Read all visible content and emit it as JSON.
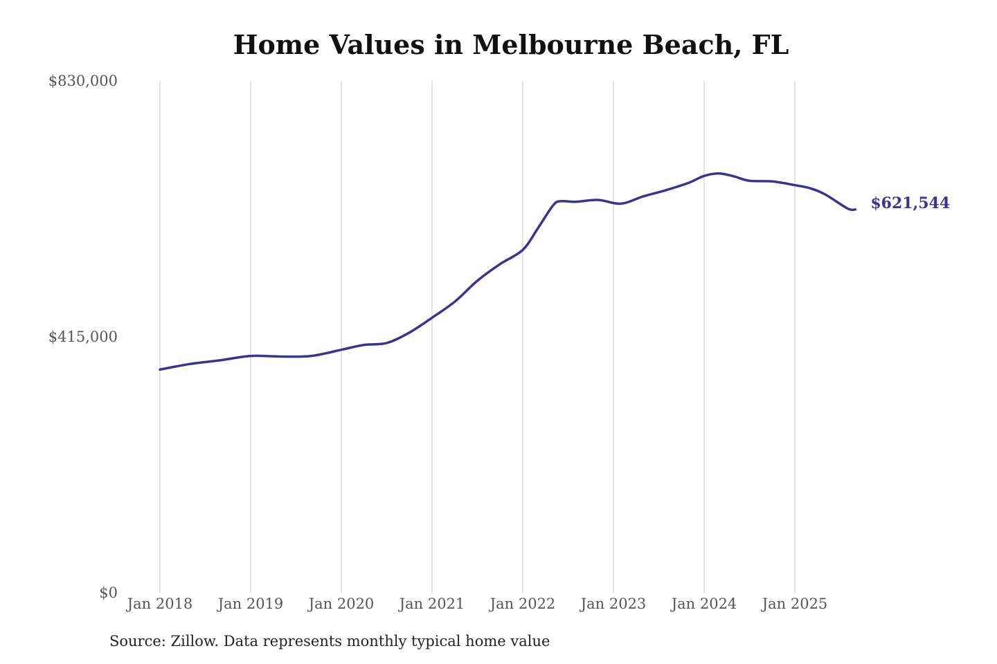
{
  "chart_data": {
    "type": "line",
    "title": "Home Values in Melbourne Beach, FL",
    "source_note": "Source: Zillow. Data represents monthly typical home value",
    "xlabel": "",
    "ylabel": "",
    "ylim": [
      0,
      830000
    ],
    "y_ticks": [
      {
        "value": 0,
        "label": "$0"
      },
      {
        "value": 415000,
        "label": "$415,000"
      },
      {
        "value": 830000,
        "label": "$830,000"
      }
    ],
    "x_ticks": [
      {
        "date": "2018-01",
        "label": "Jan 2018"
      },
      {
        "date": "2019-01",
        "label": "Jan 2019"
      },
      {
        "date": "2020-01",
        "label": "Jan 2020"
      },
      {
        "date": "2021-01",
        "label": "Jan 2021"
      },
      {
        "date": "2022-01",
        "label": "Jan 2022"
      },
      {
        "date": "2023-01",
        "label": "Jan 2023"
      },
      {
        "date": "2024-01",
        "label": "Jan 2024"
      },
      {
        "date": "2025-01",
        "label": "Jan 2025"
      }
    ],
    "grid": "vertical",
    "line_color": "#3a3294",
    "end_label": "$621,544",
    "series": [
      {
        "name": "",
        "x": [
          "2018-01",
          "2018-05",
          "2018-09",
          "2019-01",
          "2019-05",
          "2019-09",
          "2020-01",
          "2020-04",
          "2020-07",
          "2020-10",
          "2021-01",
          "2021-04",
          "2021-07",
          "2021-10",
          "2022-01",
          "2022-03",
          "2022-05",
          "2022-06",
          "2022-08",
          "2022-11",
          "2023-02",
          "2023-05",
          "2023-08",
          "2023-11",
          "2024-01",
          "2024-03",
          "2024-05",
          "2024-07",
          "2024-10",
          "2025-01",
          "2025-03",
          "2025-05",
          "2025-08",
          "2025-09"
        ],
        "y": [
          362000,
          371000,
          377000,
          384000,
          383000,
          384000,
          394000,
          402000,
          405000,
          422000,
          446000,
          472000,
          506000,
          533000,
          556000,
          591000,
          628000,
          635000,
          634000,
          637000,
          631000,
          643000,
          653000,
          665000,
          676000,
          680000,
          675000,
          668000,
          667000,
          661000,
          656000,
          646000,
          623000,
          621544
        ]
      }
    ]
  }
}
